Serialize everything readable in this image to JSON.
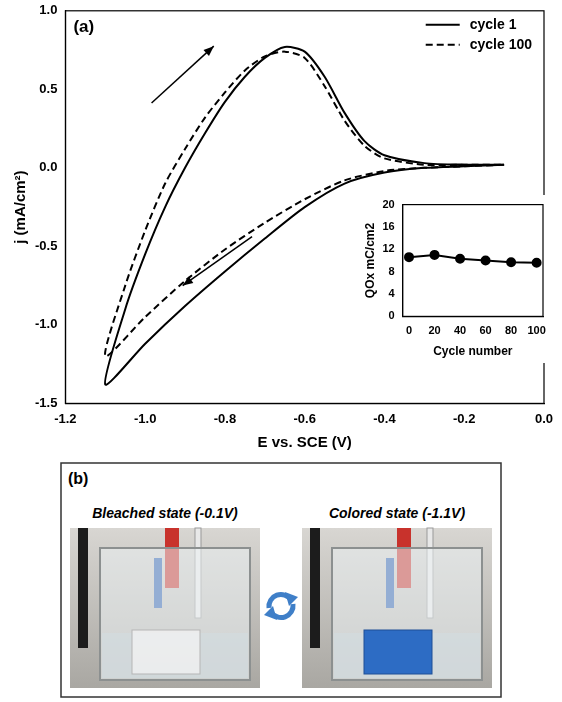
{
  "chart_data": [
    {
      "type": "line",
      "annotations": [
        "(a)"
      ],
      "x_label": "E vs. SCE (V)",
      "y_label": "j (mA/cm²)",
      "xlim": [
        -1.2,
        0.0
      ],
      "xticks": [
        -1.2,
        {
          "value": -1.0,
          "label": "-1.0"
        },
        -0.8,
        -0.6,
        -0.4,
        -0.2,
        {
          "value": 0.0,
          "label": "0.0"
        }
      ],
      "ylim": [
        -1.5,
        1.0
      ],
      "yticks": [
        -1.5,
        {
          "value": -1.0,
          "label": "-1.0"
        },
        -0.5,
        {
          "value": 0.0,
          "label": "0.0"
        },
        0.5,
        {
          "value": 1.0,
          "label": "1.0"
        }
      ],
      "grid": false,
      "legend": "upper right",
      "series": [
        {
          "name": "cycle 1",
          "color": "#000000",
          "line_style": "solid",
          "x": [
            -0.1,
            -0.2,
            -0.3,
            -0.4,
            -0.5,
            -0.6,
            -0.7,
            -0.8,
            -0.9,
            -1.0,
            -1.1,
            -1.05,
            -1.0,
            -0.95,
            -0.9,
            -0.85,
            -0.8,
            -0.75,
            -0.7,
            -0.65,
            -0.6,
            -0.55,
            -0.5,
            -0.45,
            -0.4,
            -0.3,
            -0.2,
            -0.1
          ],
          "values": [
            0.02,
            0.01,
            0.0,
            -0.03,
            -0.1,
            -0.25,
            -0.45,
            -0.66,
            -0.88,
            -1.12,
            -1.38,
            -0.9,
            -0.55,
            -0.25,
            0.0,
            0.22,
            0.42,
            0.58,
            0.7,
            0.77,
            0.74,
            0.58,
            0.35,
            0.17,
            0.08,
            0.03,
            0.02,
            0.02
          ]
        },
        {
          "name": "cycle 100",
          "color": "#000000",
          "line_style": "dashed",
          "x": [
            -0.1,
            -0.2,
            -0.3,
            -0.4,
            -0.5,
            -0.6,
            -0.7,
            -0.8,
            -0.9,
            -1.0,
            -1.1,
            -1.05,
            -1.0,
            -0.95,
            -0.9,
            -0.85,
            -0.8,
            -0.75,
            -0.7,
            -0.65,
            -0.6,
            -0.55,
            -0.5,
            -0.45,
            -0.4,
            -0.3,
            -0.2,
            -0.1
          ],
          "values": [
            0.02,
            0.01,
            0.0,
            -0.02,
            -0.08,
            -0.2,
            -0.35,
            -0.52,
            -0.72,
            -0.95,
            -1.2,
            -0.75,
            -0.4,
            -0.1,
            0.12,
            0.32,
            0.48,
            0.62,
            0.71,
            0.74,
            0.7,
            0.52,
            0.3,
            0.14,
            0.06,
            0.02,
            0.02,
            0.02
          ]
        }
      ]
    },
    {
      "type": "line",
      "x_label": "Cycle number",
      "y_label": "QOx mC/cm2",
      "xlim": [
        -5,
        105
      ],
      "xticks": [
        0,
        20,
        40,
        60,
        80,
        100
      ],
      "ylim": [
        0,
        20
      ],
      "yticks": [
        0,
        4,
        8,
        12,
        16,
        20
      ],
      "grid": false,
      "series": [
        {
          "color": "#000000",
          "marker": "circle",
          "line_style": "solid",
          "x": [
            0,
            20,
            40,
            60,
            80,
            100
          ],
          "values": [
            10.6,
            11.0,
            10.3,
            10.0,
            9.7,
            9.6
          ]
        }
      ]
    }
  ],
  "photo_panel": {
    "letter": "(b)",
    "photos": [
      {
        "caption": "Bleached state (-0.1V)",
        "state": "bleached"
      },
      {
        "caption": "Colored state (-1.1V)",
        "state": "colored"
      }
    ]
  }
}
